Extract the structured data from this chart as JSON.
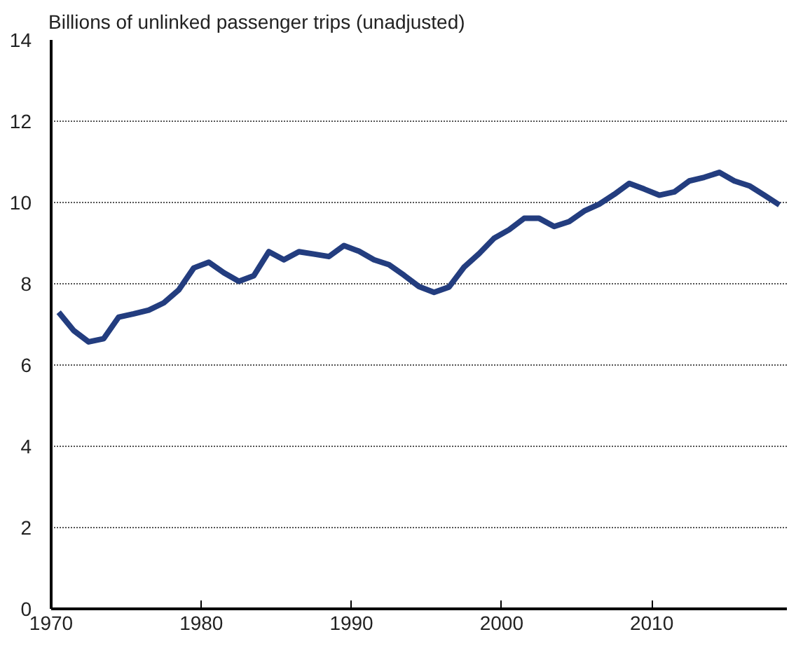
{
  "chart_data": {
    "type": "line",
    "ylabel": "Billions of unlinked passenger trips (unadjusted)",
    "x": [
      1970.5,
      1971.5,
      1972.5,
      1973.5,
      1974.5,
      1975.5,
      1976.5,
      1977.5,
      1978.5,
      1979.5,
      1980.5,
      1981.5,
      1982.5,
      1983.5,
      1984.5,
      1985.5,
      1986.5,
      1987.5,
      1988.5,
      1989.5,
      1990.5,
      1991.5,
      1992.5,
      1993.5,
      1994.5,
      1995.5,
      1996.5,
      1997.5,
      1998.5,
      1999.5,
      2000.5,
      2001.5,
      2002.5,
      2003.5,
      2004.5,
      2005.5,
      2006.5,
      2007.5,
      2008.5,
      2009.5,
      2010.5,
      2011.5,
      2012.5,
      2013.5,
      2014.5,
      2015.5,
      2016.5,
      2017.5,
      2018.5
    ],
    "series": [
      {
        "color": "#233d7f",
        "values": [
          7.3,
          6.85,
          6.57,
          6.65,
          7.18,
          7.26,
          7.35,
          7.53,
          7.85,
          8.39,
          8.53,
          8.27,
          8.06,
          8.2,
          8.79,
          8.59,
          8.79,
          8.73,
          8.67,
          8.94,
          8.8,
          8.59,
          8.47,
          8.21,
          7.93,
          7.79,
          7.92,
          8.41,
          8.74,
          9.12,
          9.33,
          9.61,
          9.61,
          9.41,
          9.53,
          9.79,
          9.96,
          10.2,
          10.47,
          10.33,
          10.18,
          10.26,
          10.53,
          10.62,
          10.74,
          10.53,
          10.41,
          10.18,
          9.94
        ]
      }
    ],
    "xlim": [
      1970,
      2019
    ],
    "xticks": [
      1970,
      1980,
      1990,
      2000,
      2010
    ],
    "ylim": [
      0,
      14
    ],
    "yticks": [
      0,
      2,
      4,
      6,
      8,
      10,
      12,
      14
    ],
    "grid": "y",
    "marker": "none",
    "line_style": "solid"
  }
}
